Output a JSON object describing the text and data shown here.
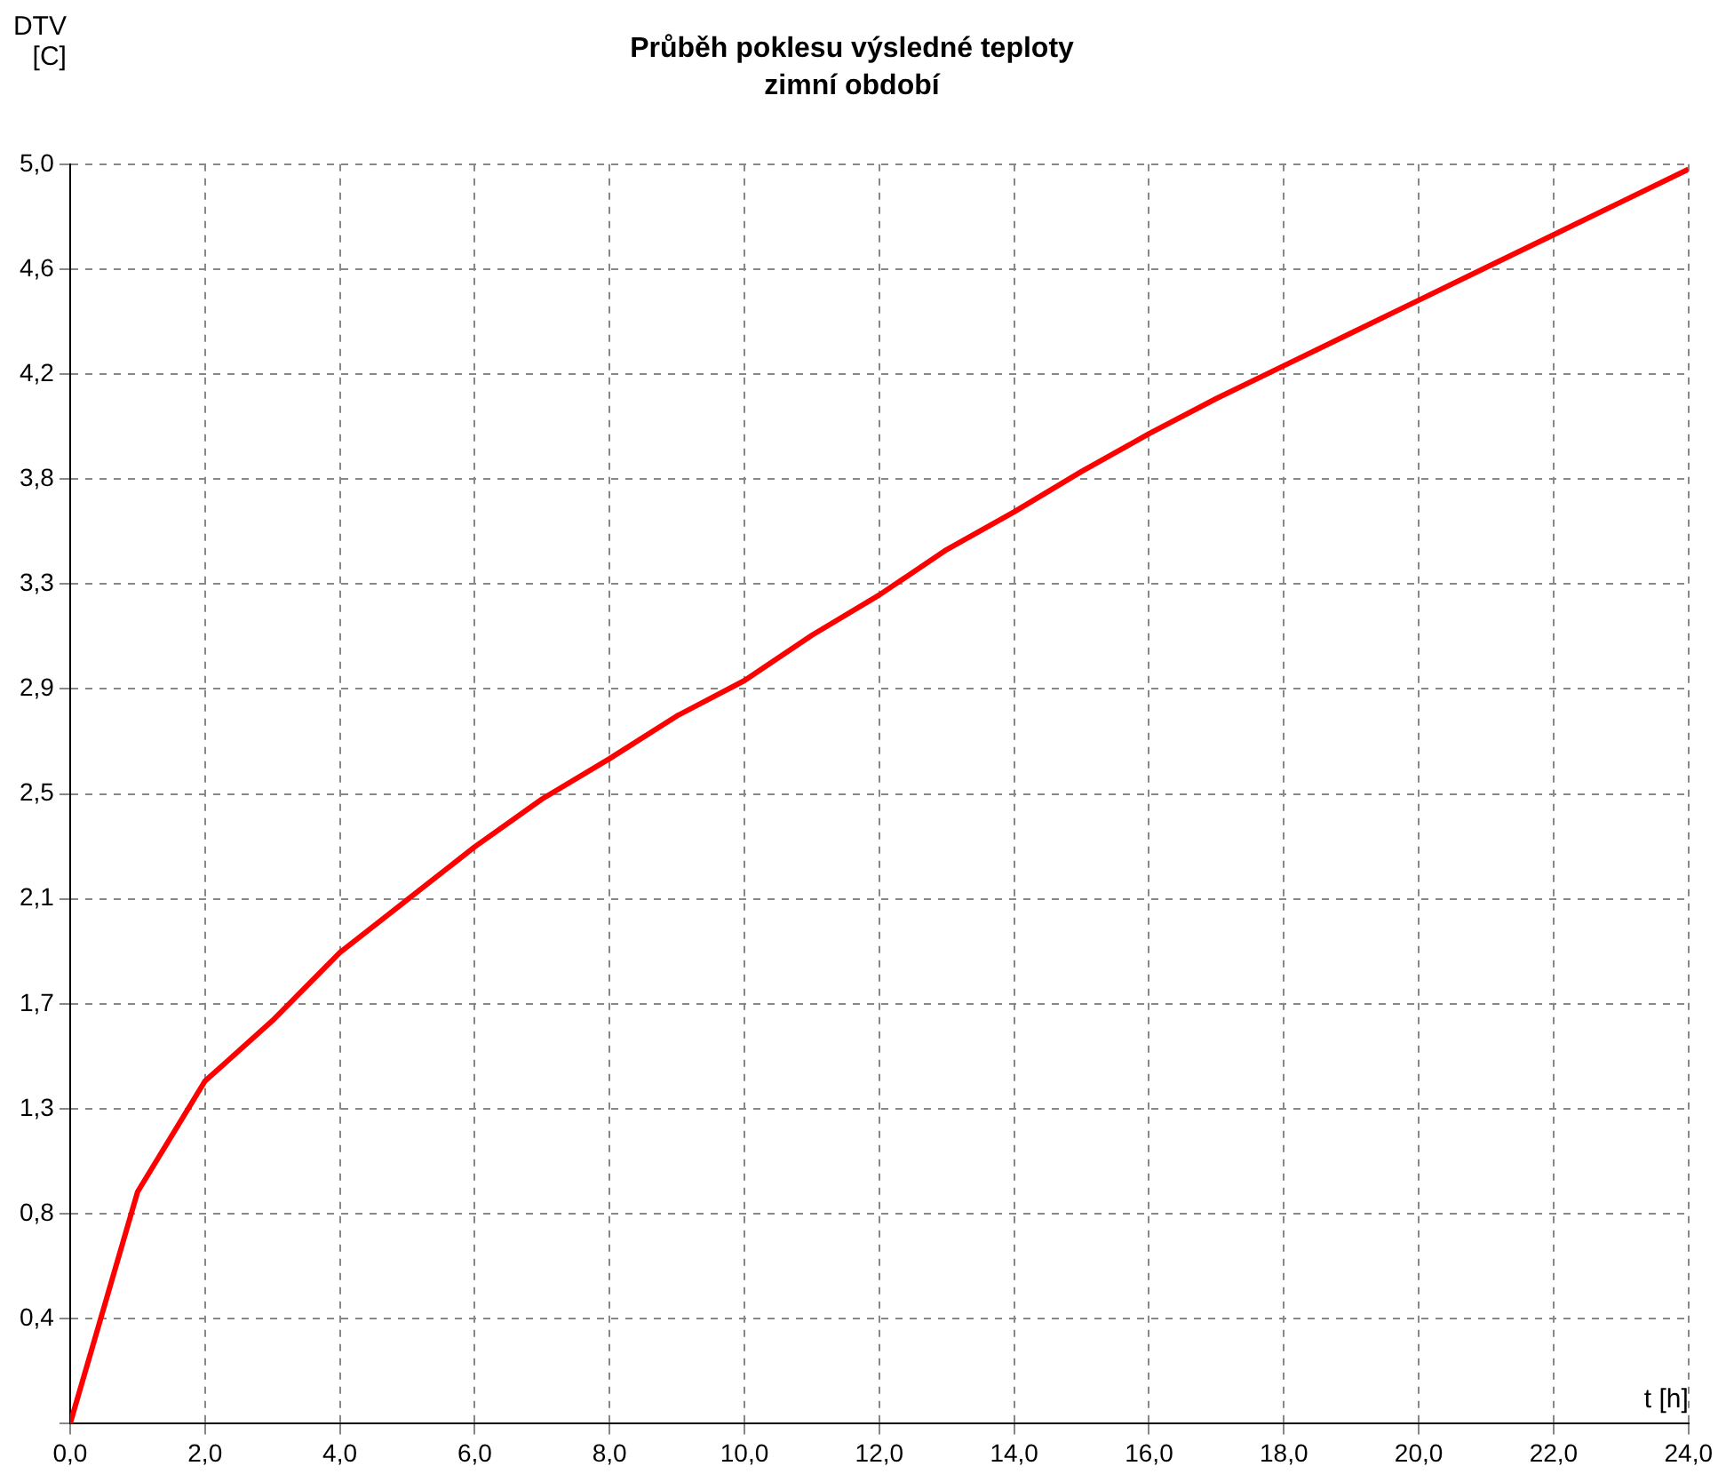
{
  "chart_data": {
    "type": "line",
    "title": "Průběh poklesu výsledné teploty",
    "subtitle": "zimní období",
    "xlabel": "t [h]",
    "ylabel": "DTV [C]",
    "x": [
      0,
      1,
      2,
      3,
      4,
      5,
      6,
      7,
      8,
      9,
      10,
      11,
      12,
      13,
      14,
      15,
      16,
      17,
      18,
      19,
      20,
      21,
      22,
      23,
      24
    ],
    "series": [
      {
        "color": "#ff0000",
        "values": [
          0,
          0.92,
          1.36,
          1.6,
          1.87,
          2.08,
          2.29,
          2.48,
          2.64,
          2.81,
          2.95,
          3.13,
          3.29,
          3.47,
          3.62,
          3.78,
          3.93,
          4.07,
          4.2,
          4.33,
          4.46,
          4.59,
          4.72,
          4.85,
          4.98
        ]
      }
    ],
    "xlim": [
      0,
      24
    ],
    "ylim": [
      0,
      5
    ],
    "xticks": [
      {
        "value": 0,
        "label": "0,0"
      },
      {
        "value": 2,
        "label": "2,0"
      },
      {
        "value": 4,
        "label": "4,0"
      },
      {
        "value": 6,
        "label": "6,0"
      },
      {
        "value": 8,
        "label": "8,0"
      },
      {
        "value": 10,
        "label": "10,0"
      },
      {
        "value": 12,
        "label": "12,0"
      },
      {
        "value": 14,
        "label": "14,0"
      },
      {
        "value": 16,
        "label": "16,0"
      },
      {
        "value": 18,
        "label": "18,0"
      },
      {
        "value": 20,
        "label": "20,0"
      },
      {
        "value": 22,
        "label": "22,0"
      },
      {
        "value": 24,
        "label": "24,0"
      }
    ],
    "yticks": [
      {
        "value": 0,
        "label": null
      },
      {
        "value": 0.4167,
        "label": "0,4"
      },
      {
        "value": 0.8333,
        "label": "0,8"
      },
      {
        "value": 1.25,
        "label": "1,3"
      },
      {
        "value": 1.6667,
        "label": "1,7"
      },
      {
        "value": 2.0833,
        "label": "2,1"
      },
      {
        "value": 2.5,
        "label": "2,5"
      },
      {
        "value": 2.9167,
        "label": "2,9"
      },
      {
        "value": 3.3333,
        "label": "3,3"
      },
      {
        "value": 3.75,
        "label": "3,8"
      },
      {
        "value": 4.1667,
        "label": "4,2"
      },
      {
        "value": 4.5833,
        "label": "4,6"
      },
      {
        "value": 5,
        "label": "5,0"
      }
    ],
    "grid": true,
    "legend": false,
    "marker": "none",
    "line_style": "solid"
  }
}
